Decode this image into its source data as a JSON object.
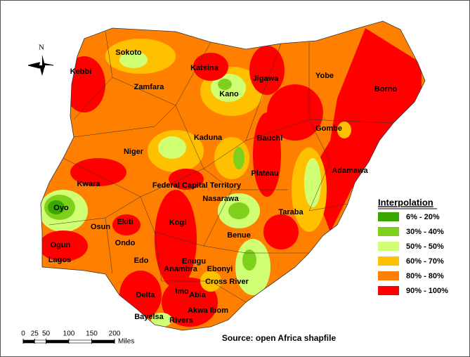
{
  "map": {
    "north": "N",
    "states": [
      "Sokoto",
      "Kebbi",
      "Zamfara",
      "Katsina",
      "Jigawa",
      "Yobe",
      "Borno",
      "Kano",
      "Kaduna",
      "Bauchi",
      "Gombe",
      "Niger",
      "Plateau",
      "Adamawa",
      "Kwara",
      "Federal Capital Territory",
      "Nasarawa",
      "Oyo",
      "Taraba",
      "Osun",
      "Ekiti",
      "Kogi",
      "Benue",
      "Ondo",
      "Ogun",
      "Lagos",
      "Edo",
      "Enugu",
      "Anambra",
      "Ebonyi",
      "Delta",
      "Cross River",
      "Imo",
      "Abia",
      "Akwa Ibom",
      "Bayelsa",
      "Rivers"
    ]
  },
  "legend": {
    "title": "Interpolation",
    "items": [
      {
        "label": "6% - 20%",
        "color": "#38a800"
      },
      {
        "label": "30% - 40%",
        "color": "#7fd01c"
      },
      {
        "label": "50% - 50%",
        "color": "#d1ff73"
      },
      {
        "label": "60% - 70%",
        "color": "#ffc000"
      },
      {
        "label": "80% - 80%",
        "color": "#ff7f00"
      },
      {
        "label": "90% - 100%",
        "color": "#ff0000"
      }
    ]
  },
  "scale_bar": {
    "ticks": [
      0,
      25,
      50,
      100,
      150,
      200
    ],
    "unit": "Miles"
  },
  "source": "Source: open Africa shapfile"
}
